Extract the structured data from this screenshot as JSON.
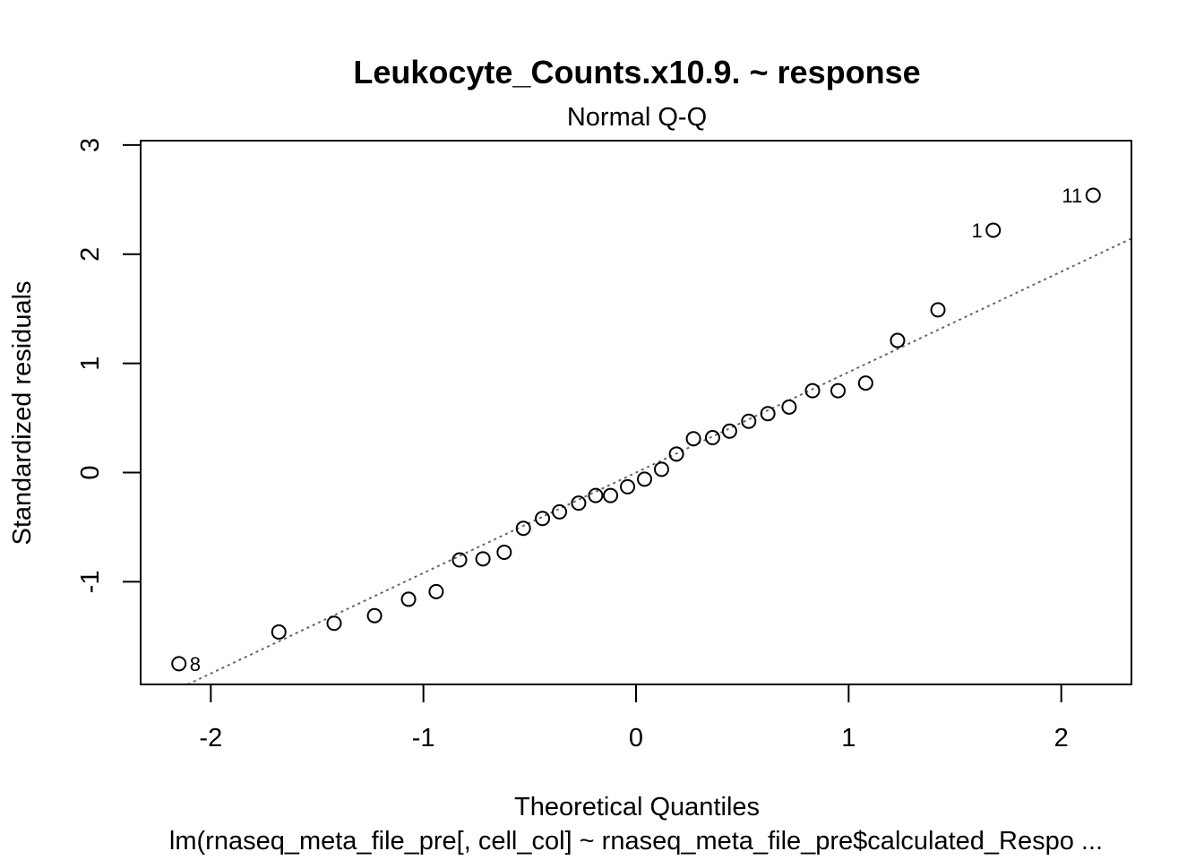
{
  "chart_data": {
    "type": "scatter",
    "title": "Leukocyte_Counts.x10.9. ~ response",
    "subtitle": "Normal Q-Q",
    "xlabel": "Theoretical Quantiles",
    "ylabel": "Standardized residuals",
    "caption": "lm(rnaseq_meta_file_pre[, cell_col] ~ rnaseq_meta_file_pre$calculated_Respo ...",
    "xlim": [
      -2.33,
      2.33
    ],
    "ylim": [
      -1.94,
      3.04
    ],
    "x_ticks": [
      -2,
      -1,
      0,
      1,
      2
    ],
    "x_tick_labels": [
      "-2",
      "-1",
      "0",
      "1",
      "2"
    ],
    "y_ticks": [
      -1,
      0,
      1,
      2,
      3
    ],
    "y_tick_labels": [
      "-1",
      "0",
      "1",
      "2",
      "3"
    ],
    "grid": false,
    "reference_line": {
      "style": "dotted",
      "color": "#666666",
      "intercept": 0.0,
      "slope": 0.92
    },
    "points": [
      {
        "x": -2.15,
        "y": -1.75,
        "label": "8"
      },
      {
        "x": -1.68,
        "y": -1.46
      },
      {
        "x": -1.42,
        "y": -1.38
      },
      {
        "x": -1.23,
        "y": -1.31
      },
      {
        "x": -1.07,
        "y": -1.16
      },
      {
        "x": -0.94,
        "y": -1.09
      },
      {
        "x": -0.83,
        "y": -0.8
      },
      {
        "x": -0.72,
        "y": -0.79
      },
      {
        "x": -0.62,
        "y": -0.73
      },
      {
        "x": -0.53,
        "y": -0.51
      },
      {
        "x": -0.44,
        "y": -0.42
      },
      {
        "x": -0.36,
        "y": -0.36
      },
      {
        "x": -0.27,
        "y": -0.28
      },
      {
        "x": -0.19,
        "y": -0.21
      },
      {
        "x": -0.12,
        "y": -0.21
      },
      {
        "x": -0.04,
        "y": -0.13
      },
      {
        "x": 0.04,
        "y": -0.06
      },
      {
        "x": 0.12,
        "y": 0.03
      },
      {
        "x": 0.19,
        "y": 0.17
      },
      {
        "x": 0.27,
        "y": 0.31
      },
      {
        "x": 0.36,
        "y": 0.32
      },
      {
        "x": 0.44,
        "y": 0.38
      },
      {
        "x": 0.53,
        "y": 0.47
      },
      {
        "x": 0.62,
        "y": 0.54
      },
      {
        "x": 0.72,
        "y": 0.6
      },
      {
        "x": 0.83,
        "y": 0.75
      },
      {
        "x": 0.95,
        "y": 0.75
      },
      {
        "x": 1.08,
        "y": 0.82
      },
      {
        "x": 1.23,
        "y": 1.21
      },
      {
        "x": 1.42,
        "y": 1.49
      },
      {
        "x": 1.68,
        "y": 2.22,
        "label": "1"
      },
      {
        "x": 2.15,
        "y": 2.54,
        "label": "11"
      }
    ]
  }
}
